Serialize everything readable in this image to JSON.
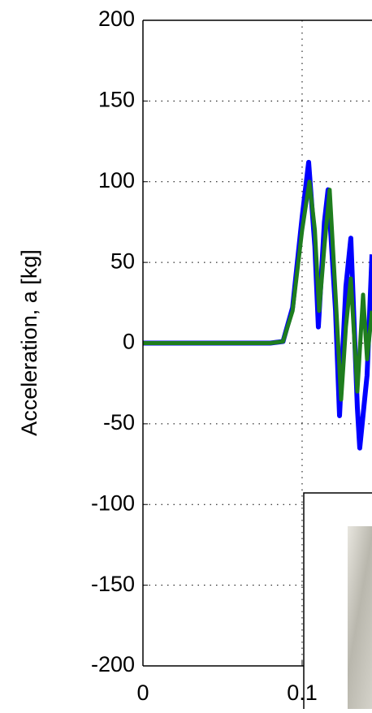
{
  "chart_data": {
    "type": "line",
    "ylabel": "Acceleration, a [kg]",
    "xlim": [
      0,
      0.1439
    ],
    "ylim": [
      -200,
      200
    ],
    "xticks": [
      0,
      0.1
    ],
    "yticks": [
      -200,
      -150,
      -100,
      -50,
      0,
      50,
      100,
      150,
      200
    ],
    "grid": true,
    "series": [
      {
        "color": "#0000ff",
        "x": [
          0,
          0.02,
          0.04,
          0.06,
          0.08,
          0.088,
          0.094,
          0.1,
          0.1041,
          0.108,
          0.1102,
          0.114,
          0.1163,
          0.121,
          0.1235,
          0.1275,
          0.1306,
          0.1347,
          0.1362,
          0.1408,
          0.1439
        ],
        "values": [
          0,
          0,
          0,
          0,
          0,
          1,
          22,
          78,
          112,
          60,
          10,
          75,
          95,
          20,
          -45,
          35,
          65,
          -40,
          -65,
          -20,
          55
        ]
      },
      {
        "color": "#1e7d1e",
        "x": [
          0,
          0.02,
          0.04,
          0.06,
          0.08,
          0.088,
          0.094,
          0.1,
          0.1046,
          0.108,
          0.1107,
          0.114,
          0.1173,
          0.121,
          0.1245,
          0.1275,
          0.1306,
          0.1347,
          0.1383,
          0.1408,
          0.1439
        ],
        "values": [
          0,
          0,
          0,
          0,
          0,
          1,
          20,
          70,
          100,
          70,
          20,
          60,
          95,
          30,
          -35,
          10,
          40,
          -30,
          30,
          -10,
          20
        ]
      }
    ]
  }
}
